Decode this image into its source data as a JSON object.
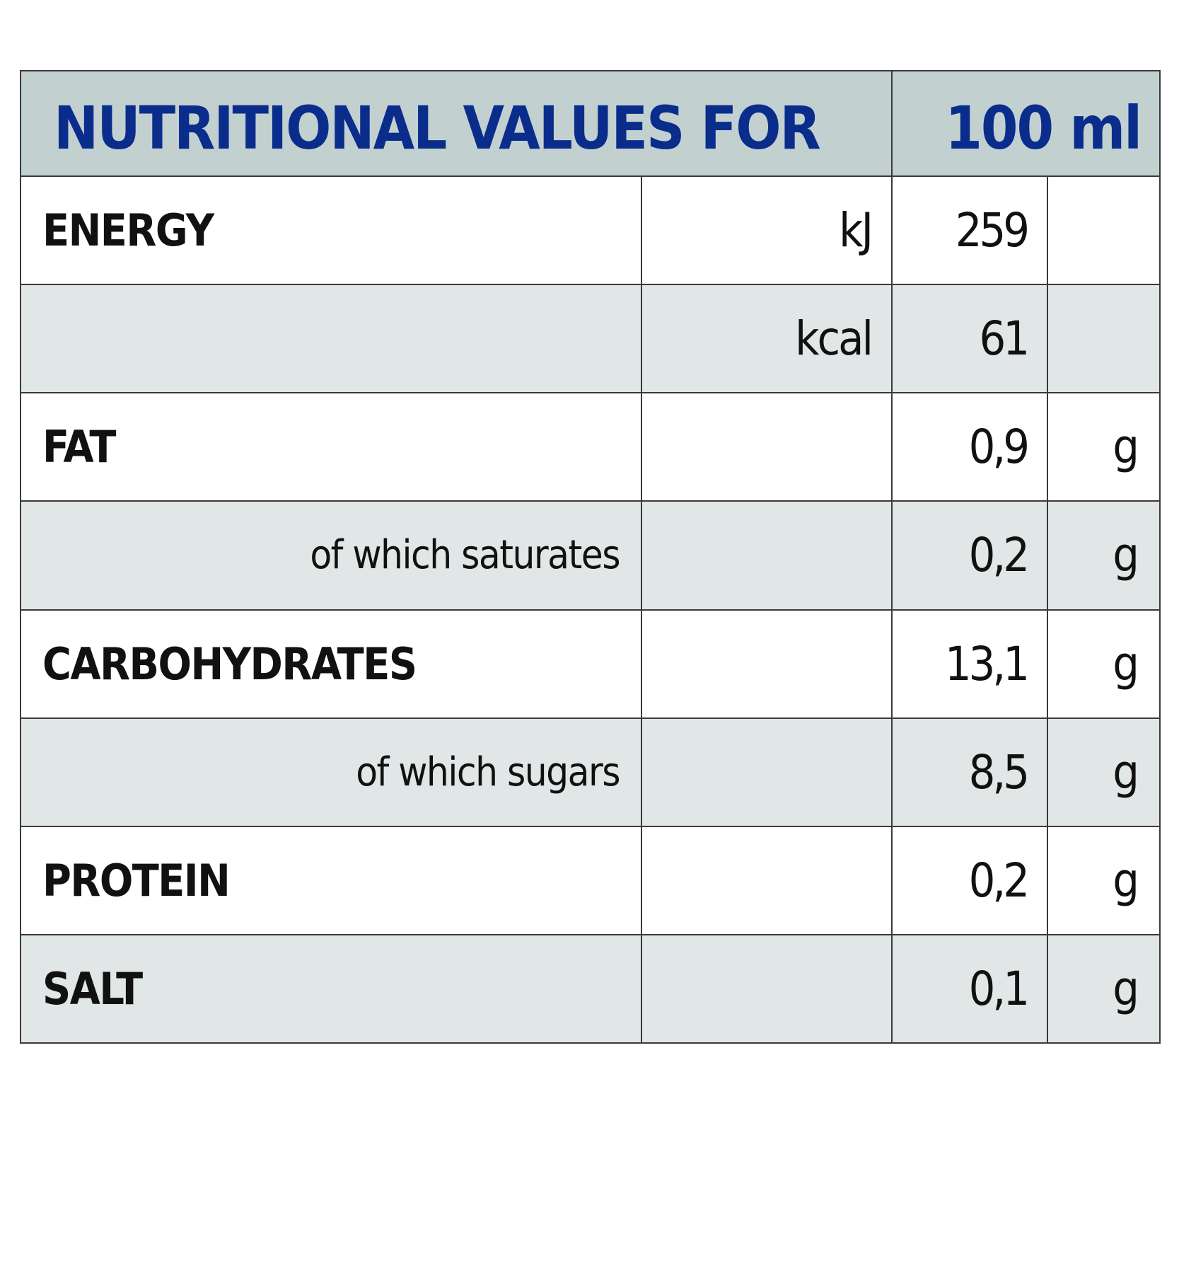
{
  "header": {
    "title": "NUTRITIONAL VALUES FOR",
    "serving": "100 ml"
  },
  "rows": [
    {
      "label": "ENERGY",
      "unit": "kJ",
      "value": "259",
      "gram_unit": ""
    },
    {
      "label": "",
      "unit": "kcal",
      "value": "61",
      "gram_unit": ""
    },
    {
      "label": "FAT",
      "unit": "",
      "value": "0,9",
      "gram_unit": "g"
    },
    {
      "label": "of which saturates",
      "unit": "",
      "value": "0,2",
      "gram_unit": "g"
    },
    {
      "label": "CARBOHYDRATES",
      "unit": "",
      "value": "13,1",
      "gram_unit": "g"
    },
    {
      "label": "of which sugars",
      "unit": "",
      "value": "8,5",
      "gram_unit": "g"
    },
    {
      "label": "PROTEIN",
      "unit": "",
      "value": "0,2",
      "gram_unit": "g"
    },
    {
      "label": "SALT",
      "unit": "",
      "value": "0,1",
      "gram_unit": "g"
    }
  ],
  "colors": {
    "header_background": "#c3d0d0",
    "header_text": "#0a2d8c",
    "alt_row_background": "#e0e7e6",
    "border": "#3a3a3a"
  }
}
